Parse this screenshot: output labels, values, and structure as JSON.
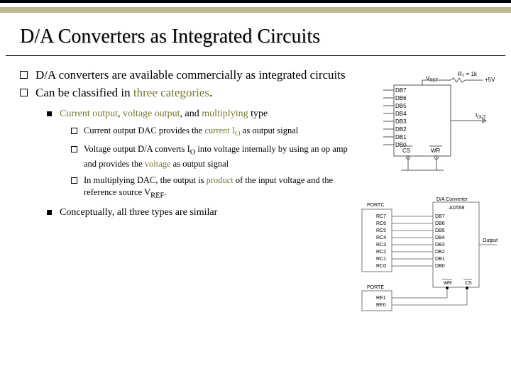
{
  "colors": {
    "top_bar": "#000000",
    "accent_bar": "#bfb78f",
    "highlight": "#777733",
    "text": "#000000",
    "diagram_stroke": "#555555"
  },
  "title": "D/A Converters as Integrated Circuits",
  "bullets": {
    "b1": "D/A converters are available commercially as integrated circuits",
    "b2_pre": "Can be classified in ",
    "b2_hl": "three categories",
    "b2_post": ".",
    "b2a_pre": "Current output",
    "b2a_mid": ", ",
    "b2a_hl2": "voltage output",
    "b2a_mid2": ", and ",
    "b2a_hl3": "multiplying",
    "b2a_post": " type",
    "b2a1_pre": "Current output DAC provides the ",
    "b2a1_hl": "current I",
    "b2a1_sub": "O",
    "b2a1_post": " as output signal",
    "b2a2_pre": "Voltage output D/A converts I",
    "b2a2_sub": "O",
    "b2a2_mid": " into voltage internally by using an op amp and provides the ",
    "b2a2_hl": "voltage",
    "b2a2_post": " as output signal",
    "b2a3_pre": "In multiplying DAC, the output is ",
    "b2a3_hl": "product",
    "b2a3_mid": " of the input voltage and the reference source V",
    "b2a3_sub": "REF",
    "b2a3_post": ".",
    "b2b": "Conceptually, all three types are similar"
  },
  "diag1": {
    "pins": [
      "DB7",
      "DB6",
      "DB5",
      "DB4",
      "DB3",
      "DB2",
      "DB1",
      "DB0"
    ],
    "vref": "V",
    "vref_sub": "REF",
    "rt": "R",
    "rt_sub": "T",
    "rt_val": " = 1k",
    "v5": "+5V",
    "iout": "I",
    "iout_sub": "OUT",
    "cs": "CS",
    "wr": "WR"
  },
  "diag2": {
    "title1": "D/A Converter",
    "title2": "AD558",
    "portc": "PORTC",
    "porte": "PORTE",
    "portc_pins": [
      "RC7",
      "RC6",
      "RC5",
      "RC4",
      "RC3",
      "RC2",
      "RC1",
      "RC0"
    ],
    "porte_pins": [
      "RE1",
      "RE0"
    ],
    "db_pins": [
      "DB7",
      "DB6",
      "DB5",
      "DB4",
      "DB3",
      "DB2",
      "DB1",
      "DB0"
    ],
    "out": "Output",
    "wr": "WR",
    "cs": "CS"
  }
}
